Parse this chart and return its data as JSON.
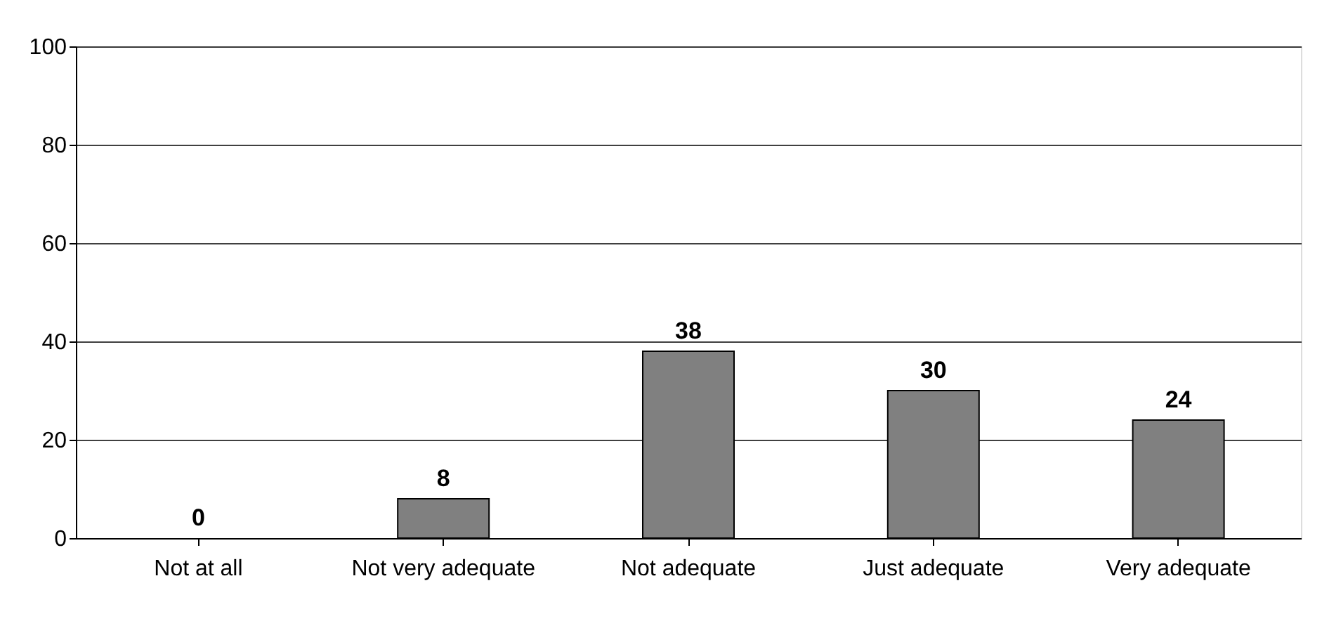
{
  "chart_data": {
    "type": "bar",
    "categories": [
      "Not at all",
      "Not very adequate",
      "Not adequate",
      "Just adequate",
      "Very adequate"
    ],
    "values": [
      0,
      8,
      38,
      30,
      24
    ],
    "color": "#808080",
    "ylim": [
      0,
      100
    ],
    "yticks": [
      0,
      20,
      40,
      60,
      80,
      100
    ],
    "grid": "y",
    "data_labels": true
  }
}
